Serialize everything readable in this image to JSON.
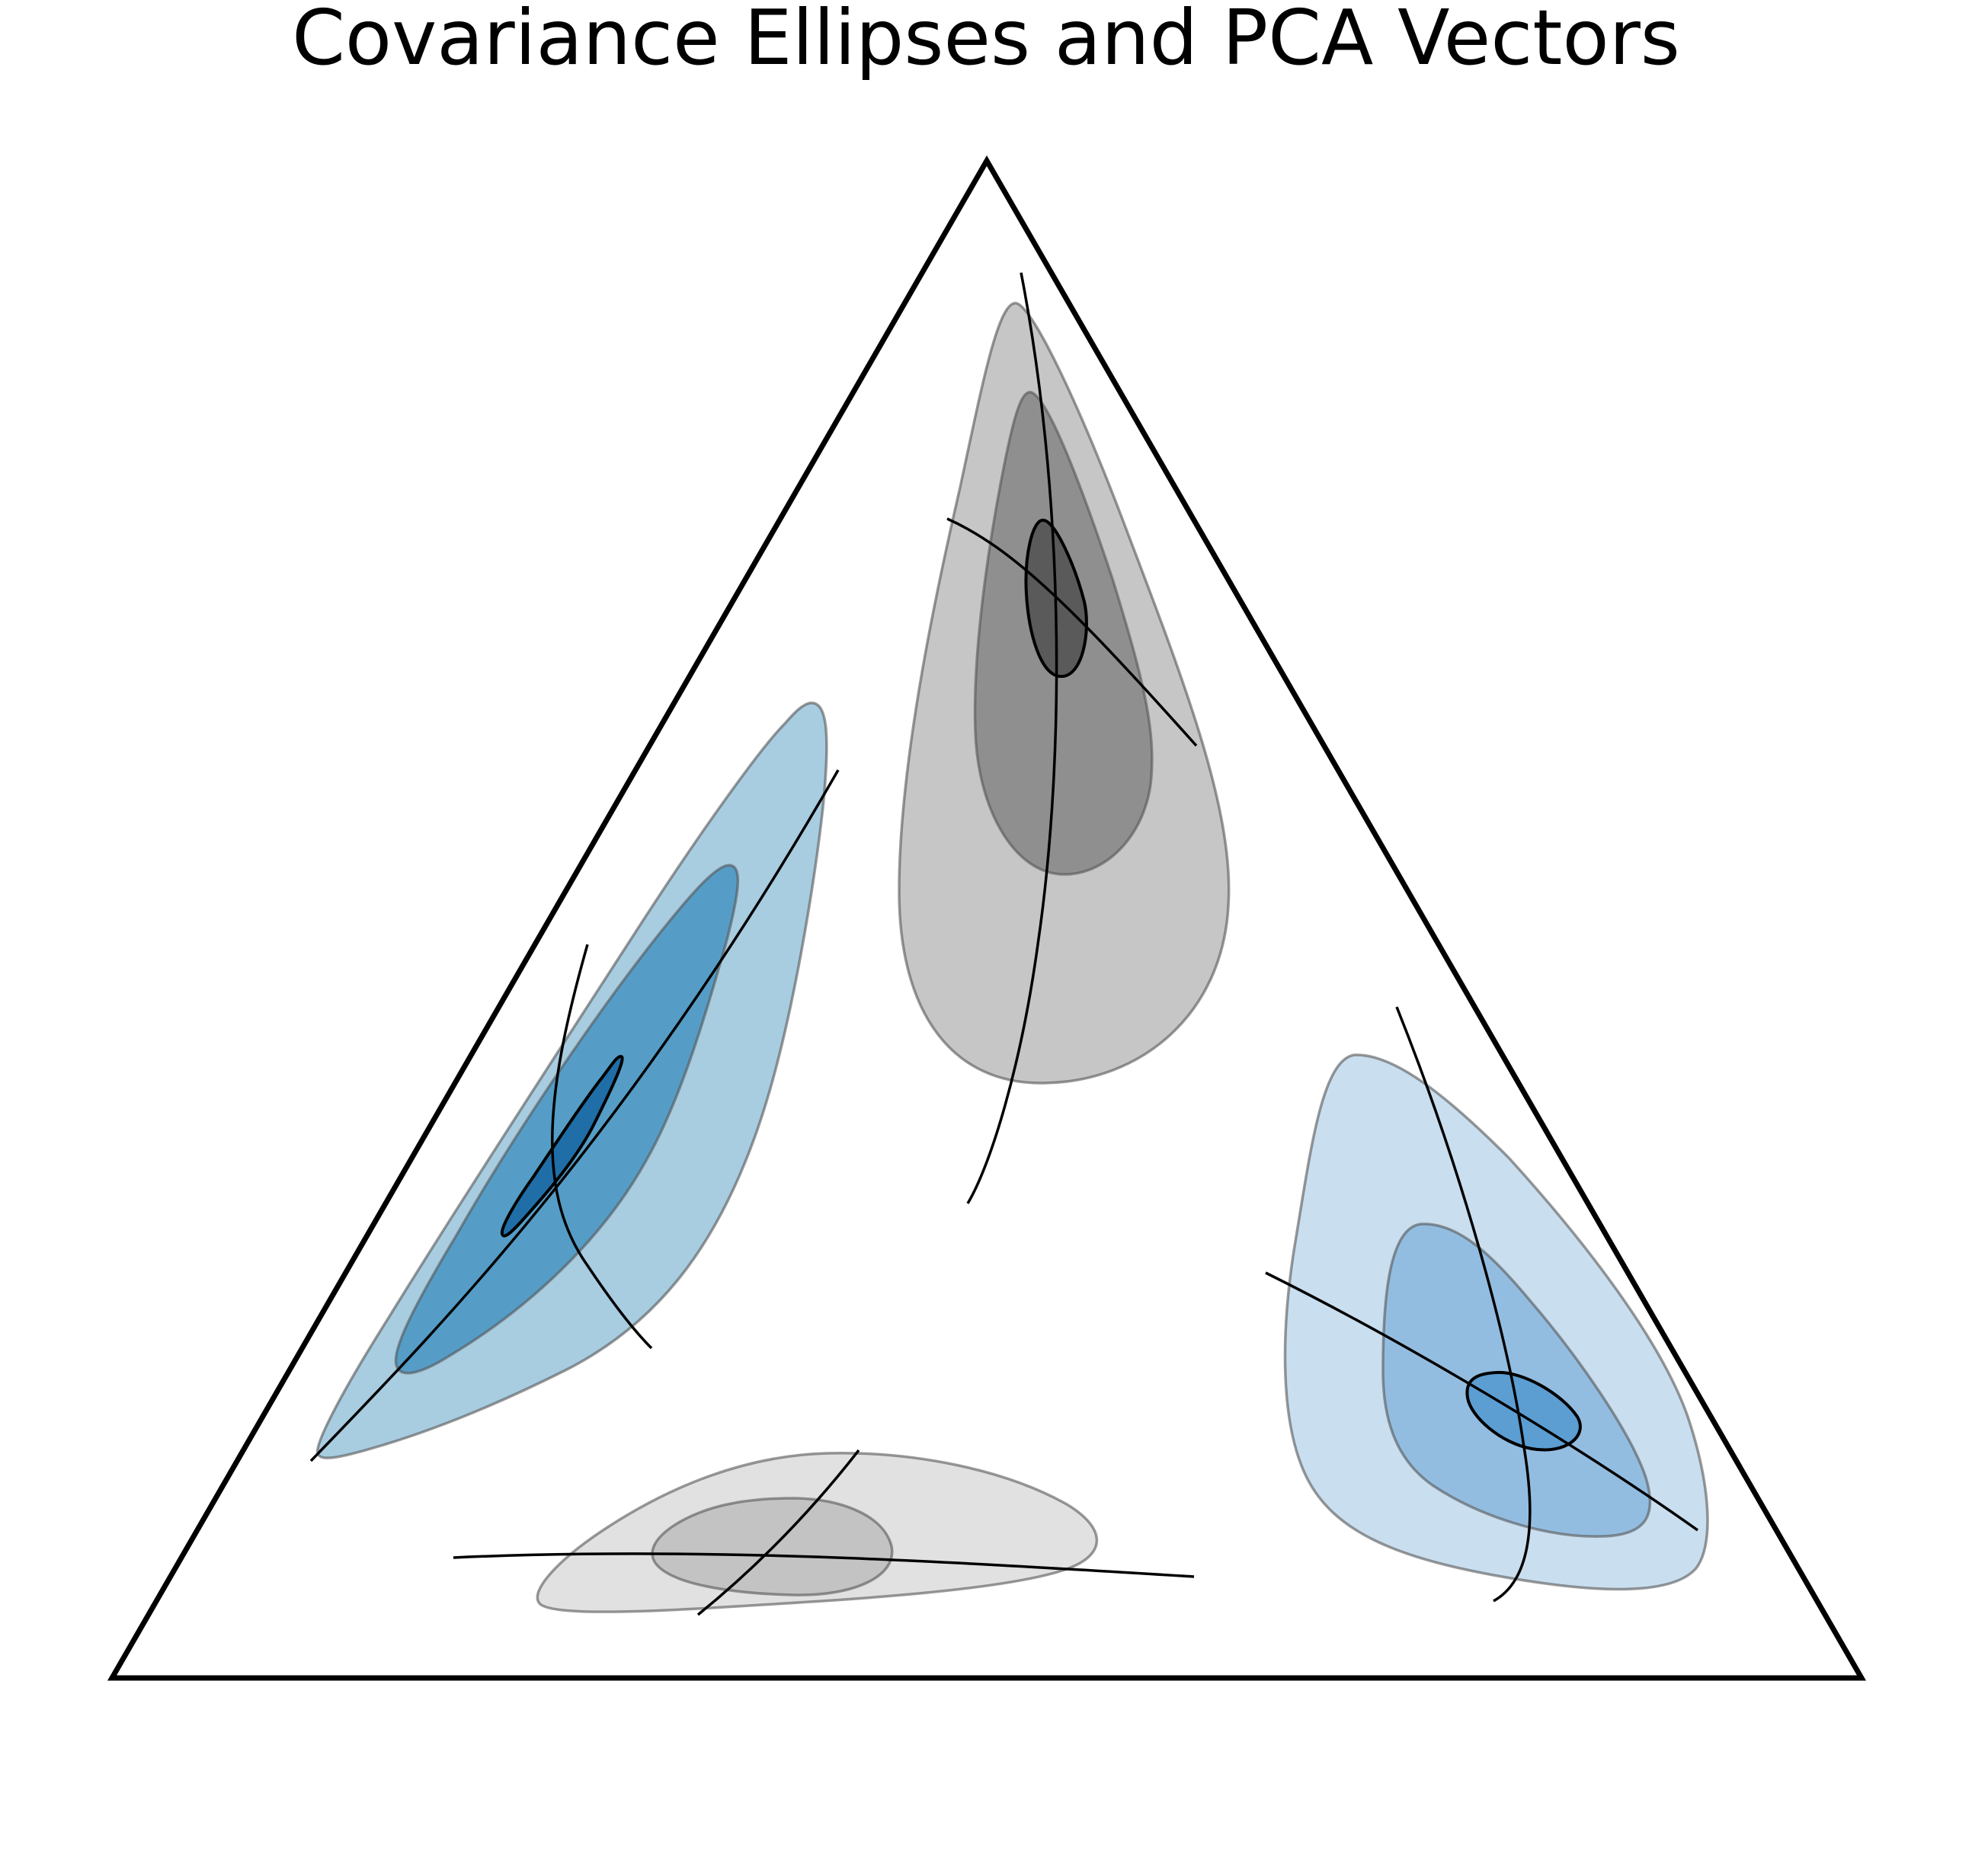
{
  "chart_data": {
    "type": "ternary-contour",
    "title": "Covariance Ellipses and PCA Vectors",
    "grid": false,
    "legend": "none",
    "colors": {
      "frame": "#000000",
      "vector": "#000000",
      "gray_levels": [
        "#c6c6c6",
        "#8f8f8f",
        "#5a5a5a"
      ],
      "gray_light_levels": [
        "#e1e1e1",
        "#c3c3c3"
      ],
      "blue_levels": [
        "#a8cce0",
        "#559dc6",
        "#1f6ea8"
      ],
      "blue_light_levels": [
        "#c9deef",
        "#93bde0",
        "#5c9dd2"
      ]
    },
    "clusters": [
      {
        "id": "top",
        "palette": "gray_levels",
        "center": [
          0.62,
          0.19,
          0.19
        ],
        "levels": 3
      },
      {
        "id": "left",
        "palette": "blue_levels",
        "center": [
          0.33,
          0.58,
          0.09
        ],
        "levels": 3
      },
      {
        "id": "right",
        "palette": "blue_light_levels",
        "center": [
          0.2,
          0.1,
          0.7
        ],
        "levels": 3
      },
      {
        "id": "bottom",
        "palette": "gray_light_levels",
        "center": [
          0.08,
          0.55,
          0.37
        ],
        "levels": 2
      }
    ]
  }
}
